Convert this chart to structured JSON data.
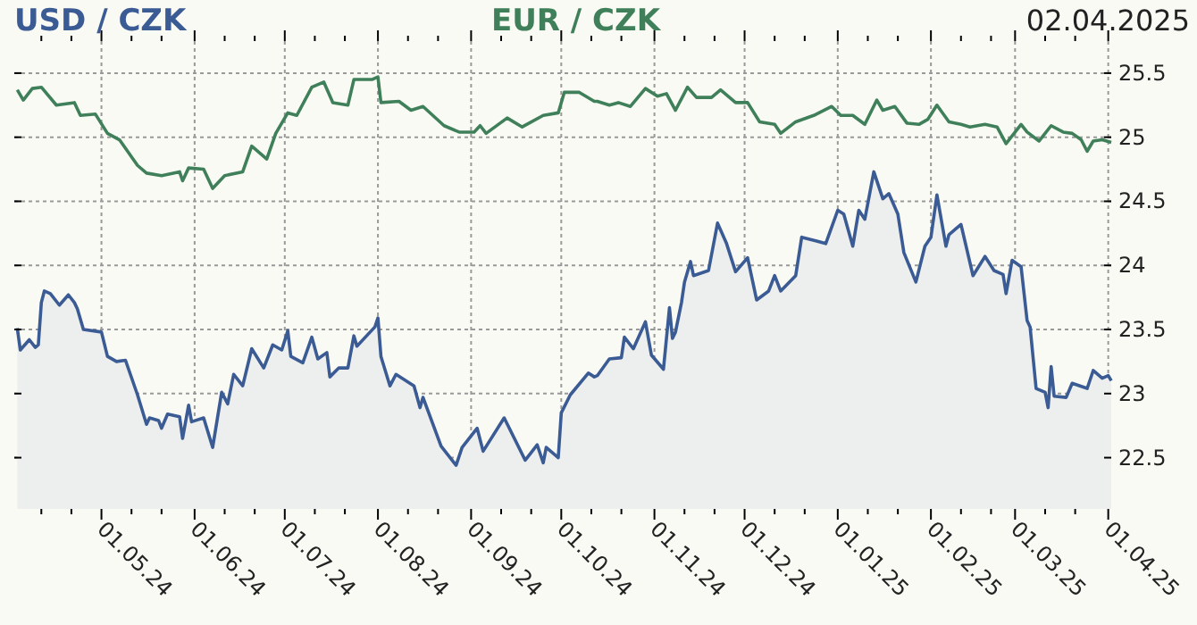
{
  "chart_data": {
    "type": "line",
    "title": "02.04.2025",
    "legend": "top",
    "grid": true,
    "xlim": [
      "2024-04-02",
      "2025-04-02"
    ],
    "xticks": [
      {
        "value": "2024-04-11",
        "label": null
      },
      {
        "value": "2024-04-21",
        "label": null
      },
      {
        "value": "2024-05-01",
        "label": "01.05.24"
      },
      {
        "value": "2024-05-11",
        "label": null
      },
      {
        "value": "2024-05-21",
        "label": null
      },
      {
        "value": "2024-06-01",
        "label": "01.06.24"
      },
      {
        "value": "2024-06-11",
        "label": null
      },
      {
        "value": "2024-06-21",
        "label": null
      },
      {
        "value": "2024-07-01",
        "label": "01.07.24"
      },
      {
        "value": "2024-07-11",
        "label": null
      },
      {
        "value": "2024-07-21",
        "label": null
      },
      {
        "value": "2024-08-01",
        "label": "01.08.24"
      },
      {
        "value": "2024-08-11",
        "label": null
      },
      {
        "value": "2024-08-21",
        "label": null
      },
      {
        "value": "2024-09-01",
        "label": "01.09.24"
      },
      {
        "value": "2024-09-11",
        "label": null
      },
      {
        "value": "2024-09-21",
        "label": null
      },
      {
        "value": "2024-10-01",
        "label": "01.10.24"
      },
      {
        "value": "2024-10-11",
        "label": null
      },
      {
        "value": "2024-10-21",
        "label": null
      },
      {
        "value": "2024-11-01",
        "label": "01.11.24"
      },
      {
        "value": "2024-11-11",
        "label": null
      },
      {
        "value": "2024-11-21",
        "label": null
      },
      {
        "value": "2024-12-01",
        "label": "01.12.24"
      },
      {
        "value": "2024-12-11",
        "label": null
      },
      {
        "value": "2024-12-21",
        "label": null
      },
      {
        "value": "2025-01-01",
        "label": "01.01.25"
      },
      {
        "value": "2025-01-11",
        "label": null
      },
      {
        "value": "2025-01-21",
        "label": null
      },
      {
        "value": "2025-02-01",
        "label": "01.02.25"
      },
      {
        "value": "2025-02-11",
        "label": null
      },
      {
        "value": "2025-02-21",
        "label": null
      },
      {
        "value": "2025-03-01",
        "label": "01.03.25"
      },
      {
        "value": "2025-03-11",
        "label": null
      },
      {
        "value": "2025-03-21",
        "label": null
      },
      {
        "value": "2025-04-01",
        "label": "01.04.25"
      }
    ],
    "ylim": [
      22.1,
      25.75
    ],
    "yticks": [
      22.5,
      23,
      23.5,
      24,
      24.5,
      25,
      25.5
    ],
    "series": [
      {
        "name": "USD / CZK",
        "type": "area",
        "color": "#3b5b94",
        "x": [
          "2024-04-03",
          "2024-04-04",
          "2024-04-07",
          "2024-04-09",
          "2024-04-10",
          "2024-04-11",
          "2024-04-12",
          "2024-04-14",
          "2024-04-17",
          "2024-04-20",
          "2024-04-22",
          "2024-04-23",
          "2024-04-25",
          "2024-05-01",
          "2024-05-03",
          "2024-05-06",
          "2024-05-09",
          "2024-05-13",
          "2024-05-16",
          "2024-05-17",
          "2024-05-20",
          "2024-05-21",
          "2024-05-23",
          "2024-05-27",
          "2024-05-28",
          "2024-05-30",
          "2024-05-31",
          "2024-06-04",
          "2024-06-07",
          "2024-06-10",
          "2024-06-12",
          "2024-06-14",
          "2024-06-17",
          "2024-06-20",
          "2024-06-24",
          "2024-06-27",
          "2024-06-30",
          "2024-07-02",
          "2024-07-03",
          "2024-07-07",
          "2024-07-10",
          "2024-07-12",
          "2024-07-15",
          "2024-07-16",
          "2024-07-19",
          "2024-07-22",
          "2024-07-24",
          "2024-07-25",
          "2024-07-31",
          "2024-08-01",
          "2024-08-02",
          "2024-08-05",
          "2024-08-07",
          "2024-08-13",
          "2024-08-15",
          "2024-08-16",
          "2024-08-22",
          "2024-08-27",
          "2024-08-29",
          "2024-09-03",
          "2024-09-05",
          "2024-09-12",
          "2024-09-19",
          "2024-09-23",
          "2024-09-25",
          "2024-09-26",
          "2024-09-30",
          "2024-10-01",
          "2024-10-04",
          "2024-10-10",
          "2024-10-12",
          "2024-10-13",
          "2024-10-17",
          "2024-10-21",
          "2024-10-22",
          "2024-10-25",
          "2024-10-29",
          "2024-10-31",
          "2024-11-04",
          "2024-11-06",
          "2024-11-07",
          "2024-11-08",
          "2024-11-10",
          "2024-11-11",
          "2024-11-13",
          "2024-11-14",
          "2024-11-19",
          "2024-11-22",
          "2024-11-25",
          "2024-11-28",
          "2024-12-02",
          "2024-12-05",
          "2024-12-09",
          "2024-12-11",
          "2024-12-13",
          "2024-12-18",
          "2024-12-20",
          "2024-12-25",
          "2024-12-28",
          "2025-01-01",
          "2025-01-03",
          "2025-01-06",
          "2025-01-08",
          "2025-01-10",
          "2025-01-13",
          "2025-01-16",
          "2025-01-18",
          "2025-01-21",
          "2025-01-23",
          "2025-01-27",
          "2025-01-30",
          "2025-02-01",
          "2025-02-03",
          "2025-02-06",
          "2025-02-07",
          "2025-02-11",
          "2025-02-15",
          "2025-02-19",
          "2025-02-22",
          "2025-02-25",
          "2025-02-26",
          "2025-02-28",
          "2025-03-03",
          "2025-03-05",
          "2025-03-06",
          "2025-03-08",
          "2025-03-11",
          "2025-03-12",
          "2025-03-13",
          "2025-03-14",
          "2025-03-18",
          "2025-03-20",
          "2025-03-25",
          "2025-03-27",
          "2025-03-30",
          "2025-04-01",
          "2025-04-02"
        ],
        "values": [
          23.51,
          23.34,
          23.42,
          23.36,
          23.38,
          23.71,
          23.8,
          23.78,
          23.69,
          23.77,
          23.71,
          23.66,
          23.5,
          23.48,
          23.29,
          23.25,
          23.26,
          22.99,
          22.76,
          22.81,
          22.79,
          22.73,
          22.84,
          22.82,
          22.65,
          22.91,
          22.78,
          22.81,
          22.58,
          23.01,
          22.92,
          23.15,
          23.06,
          23.35,
          23.2,
          23.38,
          23.34,
          23.49,
          23.29,
          23.24,
          23.44,
          23.27,
          23.32,
          23.13,
          23.2,
          23.2,
          23.45,
          23.37,
          23.52,
          23.59,
          23.29,
          23.06,
          23.15,
          23.06,
          22.89,
          22.97,
          22.59,
          22.44,
          22.58,
          22.73,
          22.55,
          22.81,
          22.48,
          22.6,
          22.46,
          22.58,
          22.5,
          22.85,
          22.99,
          23.16,
          23.13,
          23.14,
          23.27,
          23.28,
          23.44,
          23.35,
          23.56,
          23.3,
          23.19,
          23.67,
          23.43,
          23.48,
          23.71,
          23.87,
          24.03,
          23.92,
          23.96,
          24.33,
          24.17,
          23.95,
          24.06,
          23.73,
          23.8,
          23.92,
          23.8,
          23.92,
          24.22,
          24.19,
          24.17,
          24.43,
          24.4,
          24.15,
          24.43,
          24.36,
          24.73,
          24.52,
          24.56,
          24.4,
          24.1,
          23.87,
          24.15,
          24.22,
          24.55,
          24.15,
          24.24,
          24.32,
          23.92,
          24.07,
          23.96,
          23.93,
          23.78,
          24.04,
          23.99,
          23.57,
          23.52,
          23.04,
          23.01,
          22.89,
          23.21,
          22.98,
          22.97,
          23.08,
          23.04,
          23.18,
          23.12,
          23.14,
          23.1
        ]
      },
      {
        "name": "EUR / CZK",
        "color": "#3f805a",
        "x": [
          "2024-04-03",
          "2024-04-05",
          "2024-04-08",
          "2024-04-11",
          "2024-04-16",
          "2024-04-22",
          "2024-04-24",
          "2024-04-29",
          "2024-05-03",
          "2024-05-07",
          "2024-05-13",
          "2024-05-16",
          "2024-05-21",
          "2024-05-27",
          "2024-05-28",
          "2024-05-30",
          "2024-06-04",
          "2024-06-07",
          "2024-06-11",
          "2024-06-17",
          "2024-06-20",
          "2024-06-25",
          "2024-06-28",
          "2024-07-02",
          "2024-07-05",
          "2024-07-10",
          "2024-07-14",
          "2024-07-17",
          "2024-07-22",
          "2024-07-24",
          "2024-07-30",
          "2024-08-01",
          "2024-08-02",
          "2024-08-08",
          "2024-08-12",
          "2024-08-16",
          "2024-08-23",
          "2024-08-28",
          "2024-09-02",
          "2024-09-04",
          "2024-09-06",
          "2024-09-13",
          "2024-09-18",
          "2024-09-25",
          "2024-09-30",
          "2024-10-02",
          "2024-10-07",
          "2024-10-12",
          "2024-10-13",
          "2024-10-17",
          "2024-10-20",
          "2024-10-24",
          "2024-10-29",
          "2024-11-02",
          "2024-11-05",
          "2024-11-08",
          "2024-11-12",
          "2024-11-15",
          "2024-11-20",
          "2024-11-23",
          "2024-11-28",
          "2024-12-02",
          "2024-12-06",
          "2024-12-11",
          "2024-12-13",
          "2024-12-18",
          "2024-12-24",
          "2024-12-30",
          "2025-01-02",
          "2025-01-06",
          "2025-01-10",
          "2025-01-14",
          "2025-01-16",
          "2025-01-20",
          "2025-01-24",
          "2025-01-28",
          "2025-01-31",
          "2025-02-03",
          "2025-02-07",
          "2025-02-11",
          "2025-02-14",
          "2025-02-19",
          "2025-02-23",
          "2025-02-26",
          "2025-03-03",
          "2025-03-05",
          "2025-03-09",
          "2025-03-13",
          "2025-03-17",
          "2025-03-20",
          "2025-03-23",
          "2025-03-25",
          "2025-03-27",
          "2025-03-30",
          "2025-04-02"
        ],
        "values": [
          25.37,
          25.29,
          25.38,
          25.39,
          25.25,
          25.27,
          25.17,
          25.18,
          25.03,
          24.98,
          24.78,
          24.72,
          24.7,
          24.73,
          24.66,
          24.76,
          24.75,
          24.6,
          24.7,
          24.73,
          24.93,
          24.83,
          25.03,
          25.19,
          25.17,
          25.39,
          25.43,
          25.27,
          25.25,
          25.45,
          25.45,
          25.47,
          25.27,
          25.28,
          25.21,
          25.24,
          25.09,
          25.04,
          25.04,
          25.09,
          25.03,
          25.15,
          25.08,
          25.17,
          25.19,
          25.35,
          25.35,
          25.28,
          25.28,
          25.25,
          25.27,
          25.24,
          25.38,
          25.32,
          25.34,
          25.21,
          25.39,
          25.31,
          25.31,
          25.37,
          25.27,
          25.27,
          25.12,
          25.1,
          25.03,
          25.12,
          25.17,
          25.24,
          25.17,
          25.17,
          25.1,
          25.29,
          25.21,
          25.24,
          25.11,
          25.1,
          25.14,
          25.25,
          25.12,
          25.1,
          25.08,
          25.1,
          25.08,
          24.95,
          25.1,
          25.04,
          24.97,
          25.09,
          25.04,
          25.03,
          24.98,
          24.89,
          24.97,
          24.98,
          24.96
        ]
      }
    ]
  }
}
